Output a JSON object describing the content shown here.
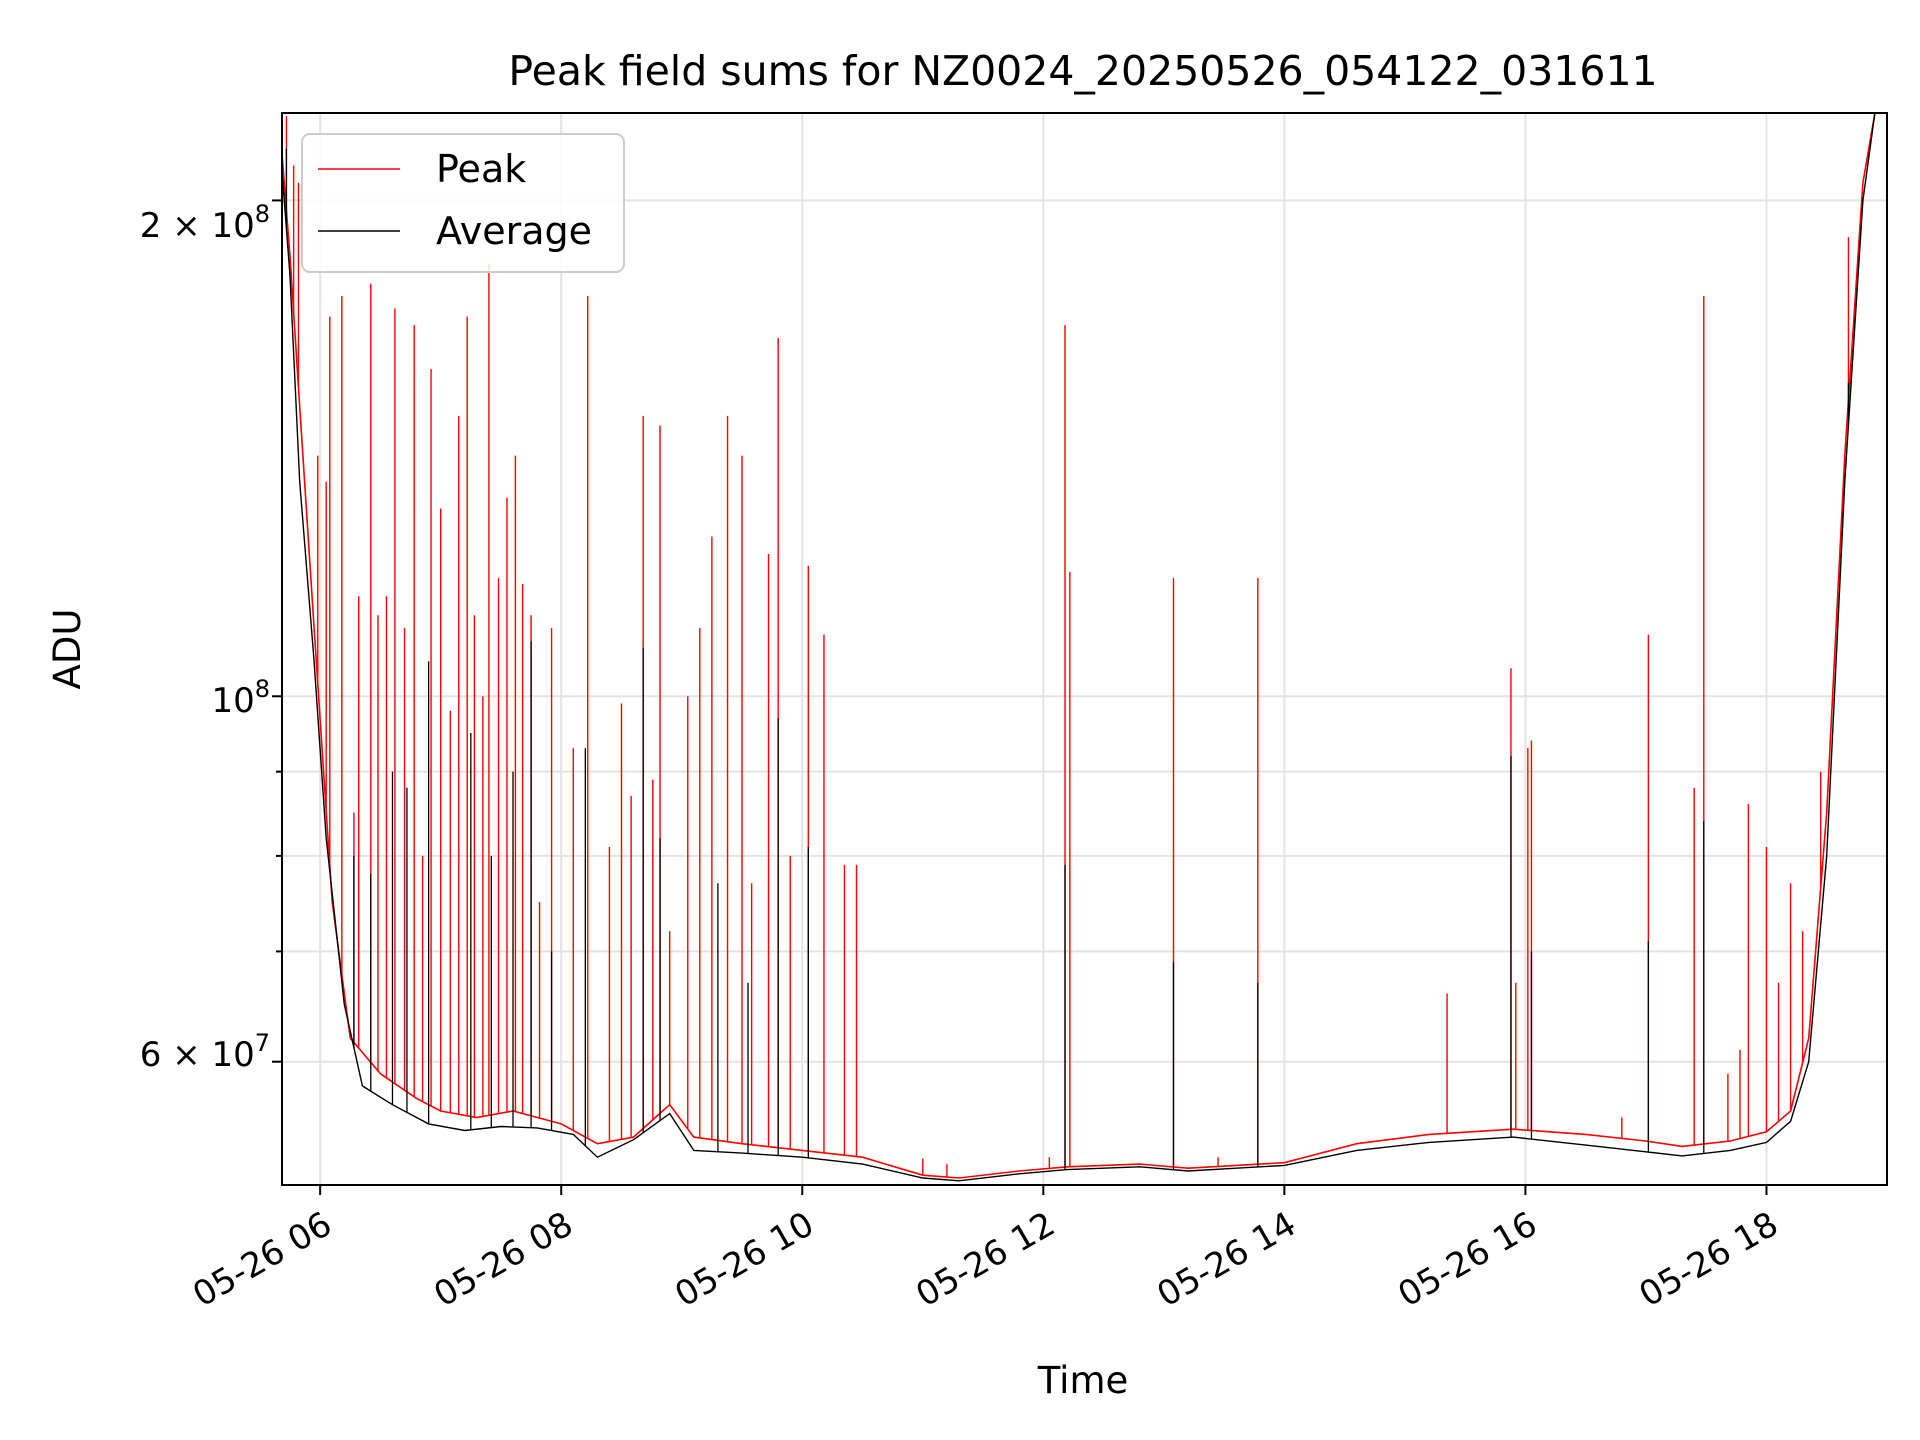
{
  "chart_data": {
    "type": "line",
    "title": "Peak field sums for NZ0024_20250526_054122_031611",
    "xlabel": "Time",
    "ylabel": "ADU",
    "y_scale": "log",
    "ylim": [
      50500000,
      226000000
    ],
    "xlim": [
      "05-26 05:41",
      "05-26 19:00"
    ],
    "grid": true,
    "legend_position": "top-left",
    "x_ticks": [
      "05-26 06",
      "05-26 08",
      "05-26 10",
      "05-26 12",
      "05-26 14",
      "05-26 16",
      "05-26 18"
    ],
    "y_ticks": [
      "2 × 10^8",
      "10^8",
      "6 × 10^7"
    ],
    "y_tick_labels": {
      "t200": {
        "base": "2 × 10",
        "exp": "8"
      },
      "t100": {
        "base": "10",
        "exp": "8"
      },
      "t60": {
        "base": "6 × 10",
        "exp": "7"
      }
    },
    "x_tick_values_hours": [
      6,
      8,
      10,
      12,
      14,
      16,
      18
    ],
    "series": [
      {
        "name": "Peak",
        "color": "#ff0000",
        "baseline": [
          [
            5.68,
            215000000
          ],
          [
            5.75,
            185000000
          ],
          [
            5.83,
            150000000
          ],
          [
            5.95,
            110000000
          ],
          [
            6.1,
            75000000
          ],
          [
            6.25,
            62000000
          ],
          [
            6.5,
            59000000
          ],
          [
            6.8,
            57000000
          ],
          [
            7.0,
            56000000
          ],
          [
            7.3,
            55500000
          ],
          [
            7.6,
            56000000
          ],
          [
            8.0,
            55000000
          ],
          [
            8.3,
            53500000
          ],
          [
            8.6,
            54000000
          ],
          [
            8.9,
            56500000
          ],
          [
            9.1,
            54000000
          ],
          [
            9.5,
            53500000
          ],
          [
            10.0,
            53000000
          ],
          [
            10.5,
            52500000
          ],
          [
            11.0,
            51200000
          ],
          [
            11.3,
            51000000
          ],
          [
            11.8,
            51500000
          ],
          [
            12.2,
            51800000
          ],
          [
            12.8,
            52000000
          ],
          [
            13.2,
            51700000
          ],
          [
            13.6,
            51900000
          ],
          [
            14.0,
            52100000
          ],
          [
            14.6,
            53500000
          ],
          [
            15.2,
            54200000
          ],
          [
            15.9,
            54600000
          ],
          [
            16.5,
            54200000
          ],
          [
            17.0,
            53700000
          ],
          [
            17.3,
            53300000
          ],
          [
            17.7,
            53700000
          ],
          [
            18.0,
            54400000
          ],
          [
            18.2,
            56000000
          ],
          [
            18.35,
            62000000
          ],
          [
            18.5,
            85000000
          ],
          [
            18.65,
            140000000
          ],
          [
            18.8,
            205000000
          ],
          [
            18.9,
            226000000
          ],
          [
            19.0,
            226000000
          ]
        ],
        "spikes": [
          [
            5.72,
            225000000
          ],
          [
            5.78,
            210000000
          ],
          [
            5.82,
            205000000
          ],
          [
            5.98,
            140000000
          ],
          [
            6.05,
            135000000
          ],
          [
            6.08,
            170000000
          ],
          [
            6.18,
            175000000
          ],
          [
            6.28,
            85000000
          ],
          [
            6.32,
            115000000
          ],
          [
            6.42,
            178000000
          ],
          [
            6.48,
            112000000
          ],
          [
            6.55,
            115000000
          ],
          [
            6.62,
            172000000
          ],
          [
            6.7,
            110000000
          ],
          [
            6.78,
            168000000
          ],
          [
            6.85,
            80000000
          ],
          [
            6.92,
            158000000
          ],
          [
            7.0,
            130000000
          ],
          [
            7.08,
            98000000
          ],
          [
            7.15,
            148000000
          ],
          [
            7.22,
            170000000
          ],
          [
            7.28,
            112000000
          ],
          [
            7.35,
            100000000
          ],
          [
            7.4,
            183000000
          ],
          [
            7.48,
            118000000
          ],
          [
            7.55,
            132000000
          ],
          [
            7.62,
            140000000
          ],
          [
            7.68,
            117000000
          ],
          [
            7.75,
            112000000
          ],
          [
            7.82,
            75000000
          ],
          [
            7.92,
            110000000
          ],
          [
            8.1,
            93000000
          ],
          [
            8.22,
            175000000
          ],
          [
            8.4,
            81000000
          ],
          [
            8.5,
            99000000
          ],
          [
            8.58,
            87000000
          ],
          [
            8.68,
            148000000
          ],
          [
            8.76,
            89000000
          ],
          [
            8.82,
            146000000
          ],
          [
            8.9,
            72000000
          ],
          [
            9.05,
            100000000
          ],
          [
            9.15,
            110000000
          ],
          [
            9.25,
            125000000
          ],
          [
            9.38,
            148000000
          ],
          [
            9.5,
            140000000
          ],
          [
            9.58,
            77000000
          ],
          [
            9.72,
            122000000
          ],
          [
            9.8,
            165000000
          ],
          [
            9.9,
            80000000
          ],
          [
            10.05,
            120000000
          ],
          [
            10.18,
            109000000
          ],
          [
            10.35,
            79000000
          ],
          [
            10.45,
            79000000
          ],
          [
            11.0,
            52400000
          ],
          [
            11.2,
            52000000
          ],
          [
            12.05,
            52500000
          ],
          [
            12.18,
            168000000
          ],
          [
            12.22,
            119000000
          ],
          [
            13.08,
            118000000
          ],
          [
            13.45,
            52500000
          ],
          [
            13.78,
            118000000
          ],
          [
            15.35,
            66000000
          ],
          [
            15.88,
            104000000
          ],
          [
            15.92,
            67000000
          ],
          [
            16.02,
            93000000
          ],
          [
            16.05,
            94000000
          ],
          [
            16.8,
            55500000
          ],
          [
            17.02,
            109000000
          ],
          [
            17.4,
            88000000
          ],
          [
            17.48,
            175000000
          ],
          [
            17.68,
            59000000
          ],
          [
            17.78,
            61000000
          ],
          [
            17.85,
            86000000
          ],
          [
            18.0,
            81000000
          ],
          [
            18.1,
            67000000
          ],
          [
            18.2,
            77000000
          ],
          [
            18.3,
            72000000
          ],
          [
            18.45,
            90000000
          ],
          [
            18.52,
            91000000
          ],
          [
            18.68,
            190000000
          ]
        ]
      },
      {
        "name": "Average",
        "color": "#000000",
        "baseline": [
          [
            5.68,
            210000000
          ],
          [
            5.75,
            180000000
          ],
          [
            5.83,
            135000000
          ],
          [
            5.95,
            105000000
          ],
          [
            6.05,
            82000000
          ],
          [
            6.2,
            65000000
          ],
          [
            6.35,
            58000000
          ],
          [
            6.6,
            56500000
          ],
          [
            6.9,
            55000000
          ],
          [
            7.2,
            54500000
          ],
          [
            7.5,
            54800000
          ],
          [
            7.8,
            54700000
          ],
          [
            8.1,
            54200000
          ],
          [
            8.3,
            52500000
          ],
          [
            8.6,
            53800000
          ],
          [
            8.9,
            55800000
          ],
          [
            9.1,
            53000000
          ],
          [
            9.5,
            52800000
          ],
          [
            10.0,
            52500000
          ],
          [
            10.5,
            52000000
          ],
          [
            11.0,
            51000000
          ],
          [
            11.3,
            50800000
          ],
          [
            11.8,
            51300000
          ],
          [
            12.2,
            51600000
          ],
          [
            12.8,
            51800000
          ],
          [
            13.2,
            51500000
          ],
          [
            13.6,
            51700000
          ],
          [
            14.0,
            51900000
          ],
          [
            14.6,
            53000000
          ],
          [
            15.2,
            53600000
          ],
          [
            15.9,
            54000000
          ],
          [
            16.5,
            53400000
          ],
          [
            17.0,
            52900000
          ],
          [
            17.3,
            52600000
          ],
          [
            17.7,
            53000000
          ],
          [
            18.0,
            53600000
          ],
          [
            18.2,
            55200000
          ],
          [
            18.35,
            60000000
          ],
          [
            18.5,
            80000000
          ],
          [
            18.65,
            135000000
          ],
          [
            18.8,
            200000000
          ],
          [
            18.9,
            226000000
          ],
          [
            19.0,
            226000000
          ]
        ],
        "spikes": [
          [
            5.72,
            215000000
          ],
          [
            6.28,
            80000000
          ],
          [
            6.42,
            78000000
          ],
          [
            6.6,
            90000000
          ],
          [
            6.72,
            88000000
          ],
          [
            6.9,
            105000000
          ],
          [
            7.25,
            95000000
          ],
          [
            7.42,
            80000000
          ],
          [
            7.6,
            90000000
          ],
          [
            7.75,
            108000000
          ],
          [
            7.92,
            70000000
          ],
          [
            8.2,
            93000000
          ],
          [
            8.68,
            107000000
          ],
          [
            8.82,
            82000000
          ],
          [
            9.3,
            77000000
          ],
          [
            9.55,
            67000000
          ],
          [
            9.8,
            97000000
          ],
          [
            10.05,
            81000000
          ],
          [
            12.18,
            79000000
          ],
          [
            13.08,
            69000000
          ],
          [
            13.78,
            67000000
          ],
          [
            15.88,
            92000000
          ],
          [
            16.05,
            70000000
          ],
          [
            17.02,
            71000000
          ],
          [
            17.48,
            84000000
          ],
          [
            18.68,
            155000000
          ]
        ]
      }
    ]
  }
}
